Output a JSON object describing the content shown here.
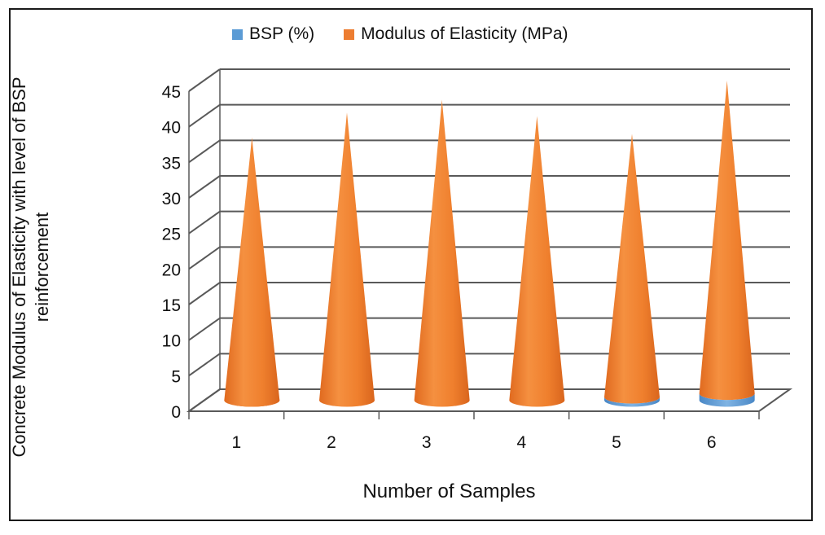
{
  "chart_data": {
    "type": "bar",
    "subtype": "3d-cone",
    "categories": [
      "1",
      "2",
      "3",
      "4",
      "5",
      "6"
    ],
    "series": [
      {
        "name": "BSP (%)",
        "color": "#5b9bd5",
        "values": [
          0,
          0.5,
          1.0,
          1.5,
          2.0,
          2.5
        ]
      },
      {
        "name": "Modulus of Elasticity (MPa)",
        "color": "#ed7d31",
        "values": [
          38.5,
          41.5,
          42.8,
          40.0,
          37.0,
          44.0
        ]
      }
    ],
    "xlabel": "Number of Samples",
    "ylabel": "Concrete Modulus of Elasticity  with level of BSP reinforcement",
    "ylim": [
      0,
      45
    ],
    "yticks": [
      "0",
      "5",
      "10",
      "15",
      "20",
      "25",
      "30",
      "35",
      "40",
      "45"
    ],
    "grid": true,
    "legend": "top"
  }
}
